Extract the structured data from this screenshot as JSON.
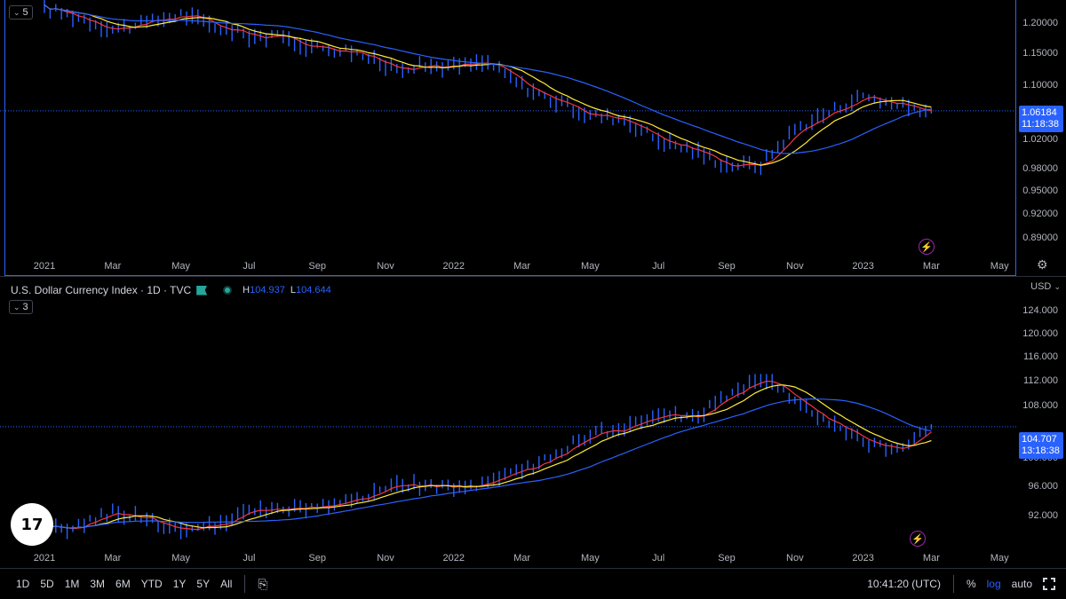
{
  "top_pane": {
    "collapse_count": "5",
    "price_ticks": [
      "1.20000",
      "1.15000",
      "1.10000",
      "1.02000",
      "0.98000",
      "0.95000",
      "0.92000",
      "0.89000"
    ],
    "price_label": {
      "value": "1.06184",
      "countdown": "11:18:38"
    },
    "time_ticks": [
      "2021",
      "Mar",
      "May",
      "Jul",
      "Sep",
      "Nov",
      "2022",
      "Mar",
      "May",
      "Jul",
      "Sep",
      "Nov",
      "2023",
      "Mar",
      "May"
    ],
    "icon_settings": "gear-icon",
    "icon_alert": "lightning-icon"
  },
  "bottom_pane": {
    "legend": {
      "title": "U.S. Dollar Currency Index · 1D · TVC",
      "high_label": "H",
      "high_value": "104.937",
      "low_label": "L",
      "low_value": "104.644"
    },
    "currency": "USD",
    "collapse_count": "3",
    "price_ticks": [
      "124.000",
      "120.000",
      "116.000",
      "112.000",
      "108.000",
      "100.000",
      "96.000",
      "92.000"
    ],
    "price_label": {
      "value": "104.707",
      "countdown": "13:18:38"
    },
    "time_ticks": [
      "2021",
      "Mar",
      "May",
      "Jul",
      "Sep",
      "Nov",
      "2022",
      "Mar",
      "May",
      "Jul",
      "Sep",
      "Nov",
      "2023",
      "Mar",
      "May"
    ],
    "logo_text": "17"
  },
  "toolbar": {
    "ranges": [
      "1D",
      "5D",
      "1M",
      "3M",
      "6M",
      "YTD",
      "1Y",
      "5Y",
      "All"
    ],
    "clock": "10:41:20 (UTC)",
    "percent": "%",
    "log": "log",
    "auto": "auto"
  },
  "colors": {
    "bars": "#2962ff",
    "ma_fast": "#f23645",
    "ma_mid": "#ffeb3b",
    "ma_slow": "#2962ff",
    "accent": "#2962ff"
  },
  "chart_data": [
    {
      "type": "line",
      "title": "",
      "x": [
        "2021-01",
        "2021-02",
        "2021-03",
        "2021-04",
        "2021-05",
        "2021-06",
        "2021-07",
        "2021-08",
        "2021-09",
        "2021-10",
        "2021-11",
        "2021-12",
        "2022-01",
        "2022-02",
        "2022-03",
        "2022-04",
        "2022-05",
        "2022-06",
        "2022-07",
        "2022-08",
        "2022-09",
        "2022-10",
        "2022-11",
        "2022-12",
        "2023-01",
        "2023-02",
        "2023-03"
      ],
      "series": [
        {
          "values": [
            1.225,
            1.21,
            1.19,
            1.2,
            1.215,
            1.195,
            1.18,
            1.175,
            1.16,
            1.155,
            1.13,
            1.13,
            1.13,
            1.135,
            1.1,
            1.075,
            1.055,
            1.05,
            1.02,
            1.005,
            0.985,
            0.985,
            1.035,
            1.06,
            1.085,
            1.07,
            1.062
          ]
        }
      ],
      "ylim": [
        0.87,
        1.23
      ],
      "ylog": true
    },
    {
      "type": "line",
      "title": "",
      "x": [
        "2021-01",
        "2021-02",
        "2021-03",
        "2021-04",
        "2021-05",
        "2021-06",
        "2021-07",
        "2021-08",
        "2021-09",
        "2021-10",
        "2021-11",
        "2021-12",
        "2022-01",
        "2022-02",
        "2022-03",
        "2022-04",
        "2022-05",
        "2022-06",
        "2022-07",
        "2022-08",
        "2022-09",
        "2022-10",
        "2022-11",
        "2022-12",
        "2023-01",
        "2023-02",
        "2023-03"
      ],
      "series": [
        {
          "values": [
            90.0,
            90.5,
            92.5,
            91.5,
            90.0,
            90.5,
            92.5,
            92.7,
            93.2,
            93.8,
            95.8,
            96.2,
            95.7,
            96.2,
            98.2,
            100.5,
            103.8,
            104.3,
            106.5,
            106.0,
            109.5,
            112.5,
            109.0,
            105.0,
            102.5,
            101.5,
            104.7
          ]
        }
      ],
      "ylim": [
        88,
        126
      ],
      "ylog": true
    }
  ]
}
